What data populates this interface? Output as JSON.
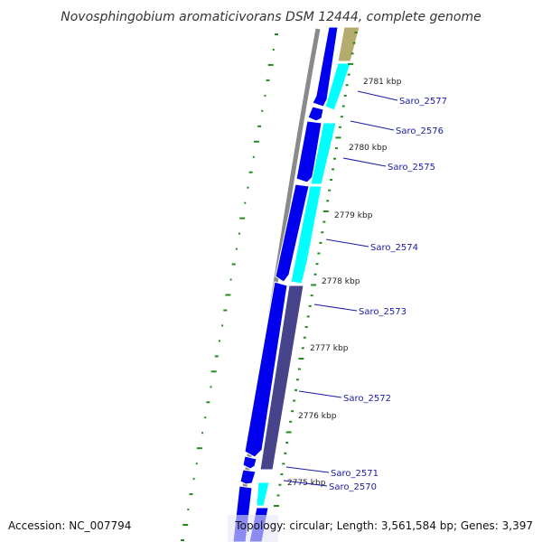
{
  "title": "Novosphingobium aromaticivorans DSM 12444, complete genome",
  "accession": "Accession: NC_007794",
  "topology": "Topology: circular; Length: 3,561,584 bp; Genes: 3,397",
  "colors": {
    "backbone": "#8a8a8a",
    "reverse_strand": "#0000ee",
    "forward_cyan": "#00ffff",
    "forward_dark": "#48448c",
    "forward_olive": "#b5ab6e",
    "label": "#1a1aa6",
    "gc_skew": "#228b22"
  },
  "ticks": [
    {
      "label": "2781 kbp"
    },
    {
      "label": "2780 kbp"
    },
    {
      "label": "2779 kbp"
    },
    {
      "label": "2778 kbp"
    },
    {
      "label": "2777 kbp"
    },
    {
      "label": "2776 kbp"
    },
    {
      "label": "2775 kbp"
    }
  ],
  "genes": [
    {
      "name": "Saro_2577"
    },
    {
      "name": "Saro_2576"
    },
    {
      "name": "Saro_2575"
    },
    {
      "name": "Saro_2574"
    },
    {
      "name": "Saro_2573"
    },
    {
      "name": "Saro_2572"
    },
    {
      "name": "Saro_2571"
    },
    {
      "name": "Saro_2570"
    }
  ]
}
